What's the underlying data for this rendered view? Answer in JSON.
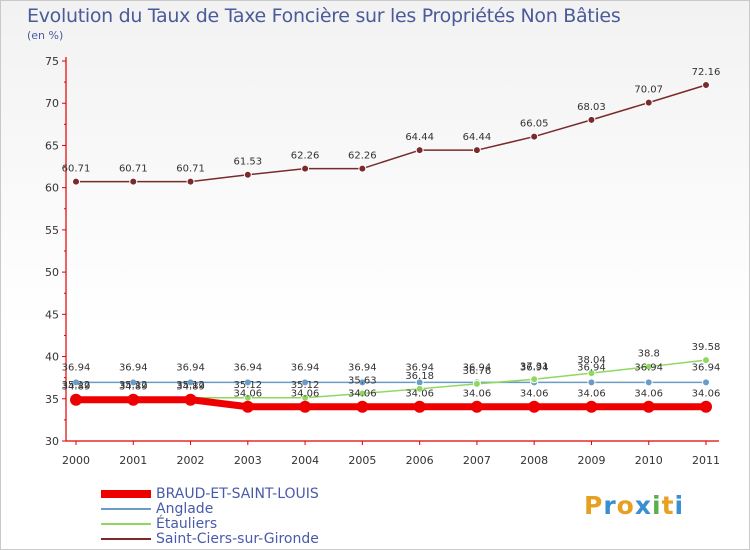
{
  "title": "Evolution du Taux de Taxe Foncière sur les Propriétés Non Bâties",
  "subtitle": "(en %)",
  "logo": {
    "letters": [
      "P",
      "r",
      "o",
      "x",
      "i",
      "t",
      "i"
    ],
    "colors": [
      "#e8a020",
      "#3a8fd0",
      "#e8a020",
      "#3a8fd0",
      "#5ab04a",
      "#e8a020",
      "#3a8fd0"
    ]
  },
  "chart_data": {
    "type": "line",
    "title": "Evolution du Taux de Taxe Foncière sur les Propriétés Non Bâties",
    "ylabel": "(en %)",
    "xlabel": "",
    "x": [
      "2000",
      "2001",
      "2002",
      "2003",
      "2004",
      "2005",
      "2006",
      "2007",
      "2008",
      "2009",
      "2010",
      "2011"
    ],
    "ylim": [
      30,
      75
    ],
    "yticks": [
      "30",
      "35",
      "40",
      "45",
      "50",
      "55",
      "60",
      "65",
      "70",
      "75"
    ],
    "grid": false,
    "legend_position": "bottom-left",
    "series": [
      {
        "name": "BRAUD-ET-SAINT-LOUIS",
        "color": "#ee0000",
        "width": 7,
        "values": [
          34.89,
          34.89,
          34.89,
          34.06,
          34.06,
          34.06,
          34.06,
          34.06,
          34.06,
          34.06,
          34.06,
          34.06
        ],
        "labels": [
          "34.89",
          "34.89",
          "34.89",
          "34.06",
          "34.06",
          "34.06",
          "34.06",
          "34.06",
          "34.06",
          "34.06",
          "34.06",
          "34.06"
        ]
      },
      {
        "name": "Anglade",
        "color": "#6a9cc8",
        "width": 1.5,
        "values": [
          36.94,
          36.94,
          36.94,
          36.94,
          36.94,
          36.94,
          36.94,
          36.94,
          36.94,
          36.94,
          36.94,
          36.94
        ],
        "labels": [
          "36.94",
          "36.94",
          "36.94",
          "36.94",
          "36.94",
          "36.94",
          "36.94",
          "36.94",
          "36.94",
          "36.94",
          "36.94",
          "36.94"
        ]
      },
      {
        "name": "Étauliers",
        "color": "#8fd860",
        "width": 1.5,
        "values": [
          35.12,
          35.12,
          35.12,
          35.12,
          35.12,
          35.63,
          36.18,
          36.76,
          37.31,
          38.04,
          38.8,
          39.58
        ],
        "labels": [
          "35.12",
          "35.12",
          "35.12",
          "35.12",
          "35.12",
          "35.63",
          "36.18",
          "36.76",
          "37.31",
          "38.04",
          "38.8",
          "39.58"
        ]
      },
      {
        "name": "Saint-Ciers-sur-Gironde",
        "color": "#7a2a2a",
        "width": 1.5,
        "values": [
          60.71,
          60.71,
          60.71,
          61.53,
          62.26,
          62.26,
          64.44,
          64.44,
          66.05,
          68.03,
          70.07,
          72.16
        ],
        "labels": [
          "60.71",
          "60.71",
          "60.71",
          "61.53",
          "62.26",
          "62.26",
          "64.44",
          "64.44",
          "66.05",
          "68.03",
          "70.07",
          "72.16"
        ]
      }
    ]
  }
}
